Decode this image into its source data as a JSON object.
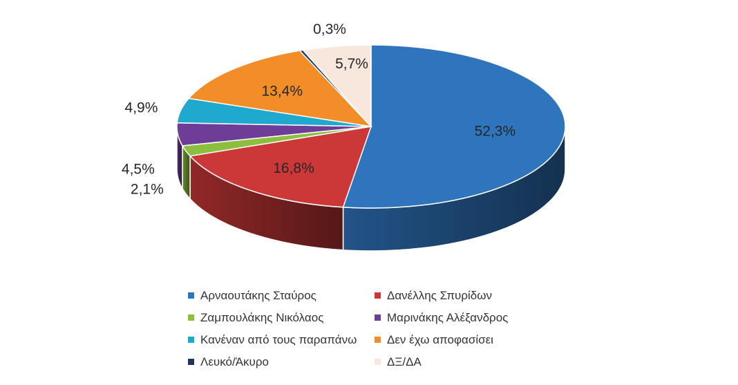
{
  "chart_data": {
    "type": "pie",
    "title": "",
    "series": [
      {
        "name": "Αρναουτάκης Σταύρος",
        "value": 52.3,
        "label": "52,3%",
        "color": "#2F75BE"
      },
      {
        "name": "Δανέλλης Σπυρίδων",
        "value": 16.8,
        "label": "16,8%",
        "color": "#CB3837"
      },
      {
        "name": "Ζαμπουλάκης Νικόλαος",
        "value": 2.1,
        "label": "2,1%",
        "color": "#8DBF3E"
      },
      {
        "name": "Μαρινάκης Αλέξανδρος",
        "value": 4.5,
        "label": "4,5%",
        "color": "#6E3D98"
      },
      {
        "name": "Κανέναν από τους παραπάνω",
        "value": 4.9,
        "label": "4,9%",
        "color": "#20A9CF"
      },
      {
        "name": "Δεν έχω αποφασίσει",
        "value": 13.4,
        "label": "13,4%",
        "color": "#F28D28"
      },
      {
        "name": "Λευκό/Άκυρο",
        "value": 0.3,
        "label": "0,3%",
        "color": "#1F3461"
      },
      {
        "name": "ΔΞ/ΔΑ",
        "value": 5.7,
        "label": "5,7%",
        "color": "#F8E7DC"
      }
    ],
    "legend_position": "bottom",
    "style": "3d"
  }
}
